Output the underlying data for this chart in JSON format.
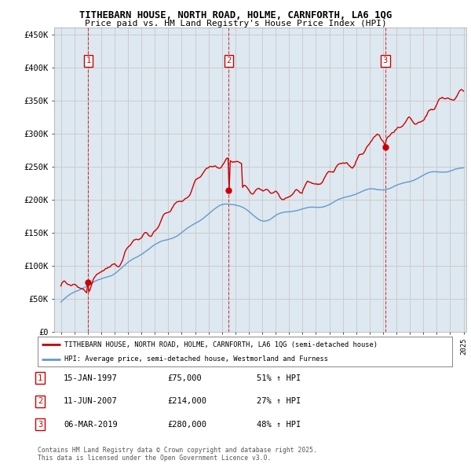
{
  "title": "TITHEBARN HOUSE, NORTH ROAD, HOLME, CARNFORTH, LA6 1QG",
  "subtitle": "Price paid vs. HM Land Registry's House Price Index (HPI)",
  "xlim": [
    1994.5,
    2025.2
  ],
  "ylim": [
    0,
    460000
  ],
  "yticks": [
    0,
    50000,
    100000,
    150000,
    200000,
    250000,
    300000,
    350000,
    400000,
    450000
  ],
  "ytick_labels": [
    "£0",
    "£50K",
    "£100K",
    "£150K",
    "£200K",
    "£250K",
    "£300K",
    "£350K",
    "£400K",
    "£450K"
  ],
  "purchases": [
    {
      "year": 1997.04,
      "price": 75000,
      "label": "1"
    },
    {
      "year": 2007.5,
      "price": 214000,
      "label": "2"
    },
    {
      "year": 2019.17,
      "price": 280000,
      "label": "3"
    }
  ],
  "vlines": [
    1997.04,
    2007.5,
    2019.17
  ],
  "red_color": "#cc0000",
  "blue_color": "#6699cc",
  "grid_color": "#cccccc",
  "bg_plot": "#dde8f0",
  "background_color": "#ffffff",
  "legend_label_red": "TITHEBARN HOUSE, NORTH ROAD, HOLME, CARNFORTH, LA6 1QG (semi-detached house)",
  "legend_label_blue": "HPI: Average price, semi-detached house, Westmorland and Furness",
  "table_entries": [
    {
      "num": "1",
      "date": "15-JAN-1997",
      "price": "£75,000",
      "hpi": "51% ↑ HPI"
    },
    {
      "num": "2",
      "date": "11-JUN-2007",
      "price": "£214,000",
      "hpi": "27% ↑ HPI"
    },
    {
      "num": "3",
      "date": "06-MAR-2019",
      "price": "£280,000",
      "hpi": "48% ↑ HPI"
    }
  ],
  "footnote": "Contains HM Land Registry data © Crown copyright and database right 2025.\nThis data is licensed under the Open Government Licence v3.0."
}
